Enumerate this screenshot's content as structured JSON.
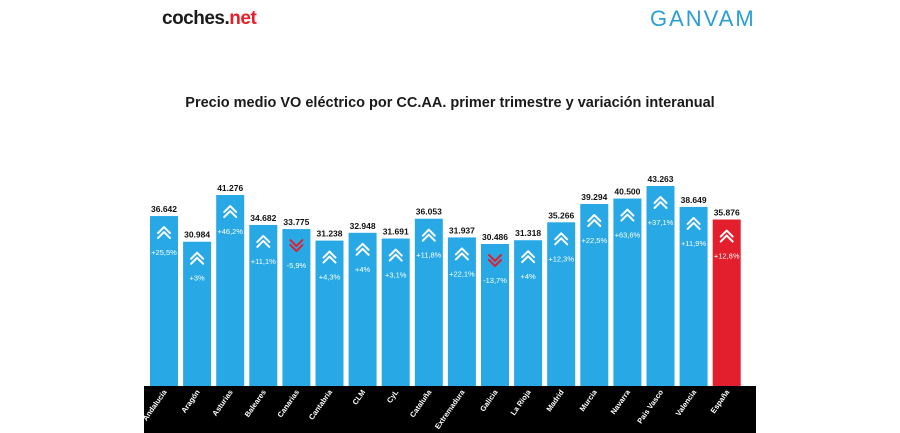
{
  "header": {
    "logo_left_main": "coches",
    "logo_left_accent": "net",
    "logo_right": "GANVAM"
  },
  "title": "Precio medio VO eléctrico por CC.AA. primer trimestre y variación interanual",
  "colors": {
    "bar": "#28a9e6",
    "highlight": "#e31e2d",
    "up_icon": "#ffffff",
    "down_icon": "#e31e2d",
    "label_band": "#000000"
  },
  "chart_data": {
    "type": "bar",
    "categories": [
      "Andalucía",
      "Aragón",
      "Asturias",
      "Baleares",
      "Canarias",
      "Cantabria",
      "CLM",
      "CyL",
      "Cataluña",
      "Extremadura",
      "Galicia",
      "La Rioja",
      "Madrid",
      "Murcia",
      "Navarra",
      "País Vasco",
      "Valencia",
      "España"
    ],
    "values": [
      36642,
      30984,
      41276,
      34682,
      33775,
      31238,
      32948,
      31691,
      36053,
      31937,
      30486,
      31318,
      35266,
      39294,
      40500,
      43263,
      38649,
      35876
    ],
    "value_labels": [
      "36.642",
      "30.984",
      "41.276",
      "34.682",
      "33.775",
      "31.238",
      "32.948",
      "31.691",
      "36.053",
      "31.937",
      "30.486",
      "31.318",
      "35.266",
      "39.294",
      "40.500",
      "43.263",
      "38.649",
      "35.876"
    ],
    "variation": [
      "+25,5%",
      "+3%",
      "+46,2%",
      "+11,1%",
      "-5,9%",
      "+4,3%",
      "+4%",
      "+3,1%",
      "+11,8%",
      "+22,1%",
      "-13,7%",
      "+4%",
      "+12,3%",
      "+22,5%",
      "+63,6%",
      "+37,1%",
      "+11,9%",
      "+12,8%"
    ],
    "direction": [
      "up",
      "up",
      "up",
      "up",
      "down",
      "up",
      "up",
      "up",
      "up",
      "up",
      "down",
      "up",
      "up",
      "up",
      "up",
      "up",
      "up",
      "up"
    ],
    "highlight_index": 17,
    "grid": false,
    "legend": "none"
  }
}
